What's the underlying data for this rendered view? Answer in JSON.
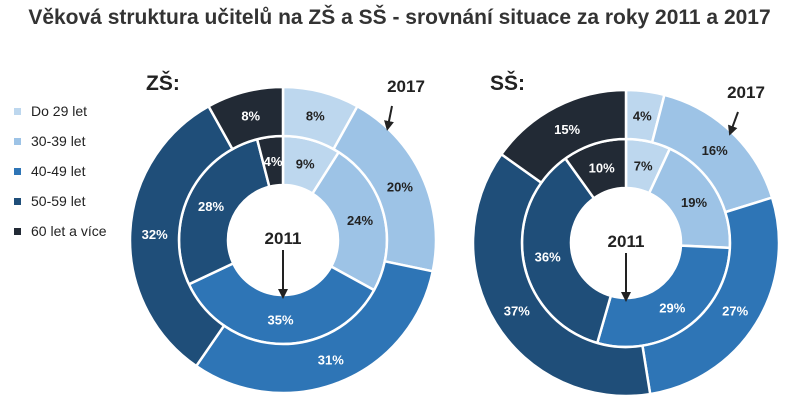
{
  "title": "Věková struktura učitelů na ZŠ a SŠ - srovnání situace za roky 2011 a 2017",
  "colors": [
    "#bdd7ee",
    "#9dc3e6",
    "#2e75b6",
    "#1f4e79",
    "#222a35"
  ],
  "chart_data": {
    "type": "pie",
    "categories": [
      "Do 29 let",
      "30-39 let",
      "40-49 let",
      "50-59 let",
      "60 let a více"
    ],
    "legend_position": "left",
    "panels": [
      {
        "label": "ZŠ:",
        "series": [
          {
            "name": "2011",
            "values": [
              9,
              24,
              35,
              28,
              4
            ]
          },
          {
            "name": "2017",
            "values": [
              8,
              20,
              31,
              32,
              8
            ]
          }
        ]
      },
      {
        "label": "SŠ:",
        "series": [
          {
            "name": "2011",
            "values": [
              7,
              19,
              29,
              36,
              10
            ]
          },
          {
            "name": "2017",
            "values": [
              4,
              16,
              27,
              37,
              15
            ]
          }
        ]
      }
    ]
  }
}
